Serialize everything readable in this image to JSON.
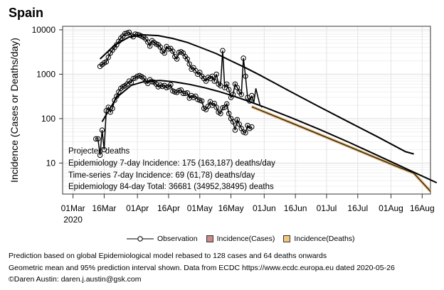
{
  "title": "Spain",
  "chart_data": {
    "type": "line",
    "ylabel": "Incidence (Cases or Deaths/day)",
    "yscale": "log",
    "ylim": [
      2,
      12000
    ],
    "y_ticks": [
      10,
      100,
      1000,
      10000
    ],
    "y_tick_labels": [
      "10",
      "100",
      "1000",
      "10000"
    ],
    "xlim": [
      "2020-02-25",
      "2020-08-20"
    ],
    "x_ticks": [
      "2020-03-01",
      "2020-03-16",
      "2020-04-01",
      "2020-04-16",
      "2020-05-01",
      "2020-05-16",
      "2020-06-01",
      "2020-06-16",
      "2020-07-01",
      "2020-07-16",
      "2020-08-01",
      "2020-08-16"
    ],
    "x_tick_labels": [
      "01Mar",
      "16Mar",
      "01Apr",
      "16Apr",
      "01May",
      "16May",
      "01Jun",
      "16Jun",
      "01Jul",
      "16Jul",
      "01Aug",
      "16Aug"
    ],
    "x_year_label": "2020",
    "grid": true,
    "series": [
      {
        "name": "Observation",
        "role": "cases-observed",
        "color": "#000000",
        "points": [
          [
            "2020-03-14",
            1500
          ],
          [
            "2020-03-15",
            1650
          ],
          [
            "2020-03-16",
            1800
          ],
          [
            "2020-03-17",
            1900
          ],
          [
            "2020-03-18",
            2400
          ],
          [
            "2020-03-19",
            3000
          ],
          [
            "2020-03-20",
            3500
          ],
          [
            "2020-03-21",
            4000
          ],
          [
            "2020-03-22",
            4600
          ],
          [
            "2020-03-23",
            5500
          ],
          [
            "2020-03-24",
            6500
          ],
          [
            "2020-03-25",
            7200
          ],
          [
            "2020-03-26",
            8200
          ],
          [
            "2020-03-27",
            8400
          ],
          [
            "2020-03-28",
            8800
          ],
          [
            "2020-03-29",
            7500
          ],
          [
            "2020-03-30",
            7000
          ],
          [
            "2020-03-31",
            8000
          ],
          [
            "2020-04-01",
            7800
          ],
          [
            "2020-04-02",
            7600
          ],
          [
            "2020-04-03",
            7200
          ],
          [
            "2020-04-04",
            6800
          ],
          [
            "2020-04-05",
            6200
          ],
          [
            "2020-04-06",
            5300
          ],
          [
            "2020-04-07",
            4300
          ],
          [
            "2020-04-08",
            5700
          ],
          [
            "2020-04-09",
            5200
          ],
          [
            "2020-04-10",
            4800
          ],
          [
            "2020-04-11",
            4600
          ],
          [
            "2020-04-12",
            4100
          ],
          [
            "2020-04-13",
            3300
          ],
          [
            "2020-04-14",
            3000
          ],
          [
            "2020-04-15",
            4200
          ],
          [
            "2020-04-16",
            3700
          ],
          [
            "2020-04-17",
            3800
          ],
          [
            "2020-04-18",
            3300
          ],
          [
            "2020-04-19",
            2500
          ],
          [
            "2020-04-20",
            2200
          ],
          [
            "2020-04-21",
            3100
          ],
          [
            "2020-04-22",
            3200
          ],
          [
            "2020-04-23",
            3000
          ],
          [
            "2020-04-24",
            2500
          ],
          [
            "2020-04-25",
            2200
          ],
          [
            "2020-04-26",
            1700
          ],
          [
            "2020-04-27",
            1300
          ],
          [
            "2020-04-28",
            1400
          ],
          [
            "2020-04-29",
            1200
          ],
          [
            "2020-04-30",
            1000
          ],
          [
            "2020-05-01",
            1100
          ],
          [
            "2020-05-02",
            900
          ],
          [
            "2020-05-03",
            800
          ],
          [
            "2020-05-04",
            700
          ],
          [
            "2020-05-05",
            850
          ],
          [
            "2020-05-06",
            800
          ],
          [
            "2020-05-07",
            900
          ],
          [
            "2020-05-08",
            700
          ],
          [
            "2020-05-09",
            1000
          ],
          [
            "2020-05-10",
            600
          ],
          [
            "2020-05-11",
            550
          ],
          [
            "2020-05-12",
            3400
          ],
          [
            "2020-05-13",
            500
          ],
          [
            "2020-05-14",
            600
          ],
          [
            "2020-05-15",
            450
          ],
          [
            "2020-05-16",
            300
          ],
          [
            "2020-05-17",
            350
          ],
          [
            "2020-05-18",
            600
          ],
          [
            "2020-05-19",
            500
          ],
          [
            "2020-05-20",
            400
          ],
          [
            "2020-05-21",
            350
          ],
          [
            "2020-05-22",
            2300
          ],
          [
            "2020-05-23",
            900
          ],
          [
            "2020-05-24",
            300
          ],
          [
            "2020-05-25",
            250
          ],
          [
            "2020-05-26",
            330
          ]
        ]
      },
      {
        "role": "cases-observed-tail",
        "color": "#000000",
        "points": [
          [
            "2020-05-26",
            330
          ],
          [
            "2020-05-27",
            230
          ],
          [
            "2020-05-28",
            480
          ],
          [
            "2020-05-29",
            300
          ],
          [
            "2020-05-30",
            200
          ],
          [
            "2020-05-31",
            180
          ]
        ]
      },
      {
        "role": "cases-model",
        "color": "#000000",
        "points": [
          [
            "2020-03-14",
            2200
          ],
          [
            "2020-03-21",
            4500
          ],
          [
            "2020-03-28",
            6900
          ],
          [
            "2020-04-04",
            7700
          ],
          [
            "2020-04-11",
            7400
          ],
          [
            "2020-04-18",
            6400
          ],
          [
            "2020-04-25",
            5200
          ],
          [
            "2020-05-02",
            3900
          ],
          [
            "2020-05-09",
            2900
          ],
          [
            "2020-05-16",
            2000
          ],
          [
            "2020-05-23",
            1400
          ],
          [
            "2020-05-30",
            950
          ],
          [
            "2020-06-13",
            420
          ],
          [
            "2020-06-27",
            190
          ],
          [
            "2020-07-11",
            87
          ],
          [
            "2020-07-25",
            40
          ],
          [
            "2020-08-08",
            18
          ],
          [
            "2020-08-12",
            16
          ]
        ]
      },
      {
        "role": "deaths-observed",
        "color": "#000000",
        "points": [
          [
            "2020-03-12",
            35
          ],
          [
            "2020-03-13",
            35
          ],
          [
            "2020-03-14",
            15
          ],
          [
            "2020-03-15",
            55
          ],
          [
            "2020-03-16",
            20
          ],
          [
            "2020-03-17",
            150
          ],
          [
            "2020-03-18",
            180
          ],
          [
            "2020-03-19",
            140
          ],
          [
            "2020-03-20",
            170
          ],
          [
            "2020-03-21",
            260
          ],
          [
            "2020-03-22",
            320
          ],
          [
            "2020-03-23",
            400
          ],
          [
            "2020-03-24",
            480
          ],
          [
            "2020-03-25",
            520
          ],
          [
            "2020-03-26",
            550
          ],
          [
            "2020-03-27",
            600
          ],
          [
            "2020-03-28",
            700
          ],
          [
            "2020-03-29",
            650
          ],
          [
            "2020-03-30",
            800
          ],
          [
            "2020-03-31",
            820
          ],
          [
            "2020-04-01",
            900
          ],
          [
            "2020-04-02",
            930
          ],
          [
            "2020-04-03",
            880
          ],
          [
            "2020-04-04",
            820
          ],
          [
            "2020-04-05",
            700
          ],
          [
            "2020-04-06",
            620
          ],
          [
            "2020-04-07",
            750
          ],
          [
            "2020-04-08",
            680
          ],
          [
            "2020-04-09",
            660
          ],
          [
            "2020-04-10",
            600
          ],
          [
            "2020-04-11",
            520
          ],
          [
            "2020-04-12",
            570
          ],
          [
            "2020-04-13",
            530
          ],
          [
            "2020-04-14",
            560
          ],
          [
            "2020-04-15",
            500
          ],
          [
            "2020-04-16",
            520
          ],
          [
            "2020-04-17",
            580
          ],
          [
            "2020-04-18",
            420
          ],
          [
            "2020-04-19",
            400
          ],
          [
            "2020-04-20",
            390
          ],
          [
            "2020-04-21",
            430
          ],
          [
            "2020-04-22",
            440
          ],
          [
            "2020-04-23",
            370
          ],
          [
            "2020-04-24",
            370
          ],
          [
            "2020-04-25",
            380
          ],
          [
            "2020-04-26",
            290
          ],
          [
            "2020-04-27",
            330
          ],
          [
            "2020-04-28",
            300
          ],
          [
            "2020-04-29",
            320
          ],
          [
            "2020-04-30",
            270
          ],
          [
            "2020-05-01",
            260
          ],
          [
            "2020-05-02",
            250
          ],
          [
            "2020-05-03",
            170
          ],
          [
            "2020-05-04",
            160
          ],
          [
            "2020-05-05",
            190
          ],
          [
            "2020-05-06",
            240
          ],
          [
            "2020-05-07",
            200
          ],
          [
            "2020-05-08",
            220
          ],
          [
            "2020-05-09",
            180
          ],
          [
            "2020-05-10",
            140
          ],
          [
            "2020-05-11",
            130
          ],
          [
            "2020-05-12",
            175
          ],
          [
            "2020-05-13",
            180
          ],
          [
            "2020-05-14",
            215
          ],
          [
            "2020-05-15",
            130
          ],
          [
            "2020-05-16",
            100
          ],
          [
            "2020-05-17",
            85
          ],
          [
            "2020-05-18",
            55
          ],
          [
            "2020-05-19",
            95
          ],
          [
            "2020-05-20",
            75
          ],
          [
            "2020-05-21",
            60
          ],
          [
            "2020-05-22",
            50
          ],
          [
            "2020-05-23",
            48
          ],
          [
            "2020-05-24",
            70
          ],
          [
            "2020-05-25",
            60
          ],
          [
            "2020-05-26",
            65
          ]
        ]
      },
      {
        "role": "deaths-model",
        "color": "#000000",
        "points": [
          [
            "2020-03-15",
            85
          ],
          [
            "2020-03-22",
            300
          ],
          [
            "2020-03-29",
            560
          ],
          [
            "2020-04-05",
            700
          ],
          [
            "2020-04-12",
            720
          ],
          [
            "2020-04-19",
            670
          ],
          [
            "2020-04-26",
            590
          ],
          [
            "2020-05-03",
            500
          ],
          [
            "2020-05-10",
            410
          ],
          [
            "2020-05-17",
            325
          ],
          [
            "2020-05-24",
            250
          ],
          [
            "2020-05-31",
            190
          ],
          [
            "2020-06-14",
            105
          ],
          [
            "2020-06-28",
            56
          ],
          [
            "2020-07-12",
            29
          ],
          [
            "2020-07-26",
            14.5
          ],
          [
            "2020-08-09",
            7.2
          ],
          [
            "2020-08-23",
            3.6
          ]
        ]
      },
      {
        "role": "deaths-projection",
        "color": "#e6b870",
        "points": [
          [
            "2020-05-26",
            185
          ],
          [
            "2020-06-09",
            100
          ],
          [
            "2020-06-23",
            54
          ],
          [
            "2020-07-07",
            29
          ],
          [
            "2020-07-21",
            15.5
          ],
          [
            "2020-08-04",
            8.3
          ],
          [
            "2020-08-12",
            5.9
          ],
          [
            "2020-08-20",
            2.3
          ]
        ]
      }
    ],
    "legend": [
      "Observation",
      "Incidence(Cases)",
      "Incidence(Deaths)"
    ],
    "legend_colors": [
      "#000000",
      "#c98a8a",
      "#f2c77c"
    ]
  },
  "annotations": {
    "heading": "Projected deaths",
    "line1": "Epidemiology 7-day Incidence:  175 (163,187) deaths/day",
    "line2": "Time-series 7-day Incidence:  69 (61,78) deaths/day",
    "line3": "Epidemiology 84-day Total:  36681 (34952,38495) deaths"
  },
  "legend_labels": {
    "observation": "Observation",
    "cases": "Incidence(Cases)",
    "deaths": "Incidence(Deaths)"
  },
  "footnotes": {
    "line1": "Prediction based on global Epidemiological model rebased to 128 cases and 64 deaths onwards",
    "line2": "Geometric mean and 95% prediction interval shown. Data from ECDC https://www.ecdc.europa.eu dated 2020-05-26",
    "line3": "©Daren Austin: daren.j.austin@gsk.com"
  }
}
